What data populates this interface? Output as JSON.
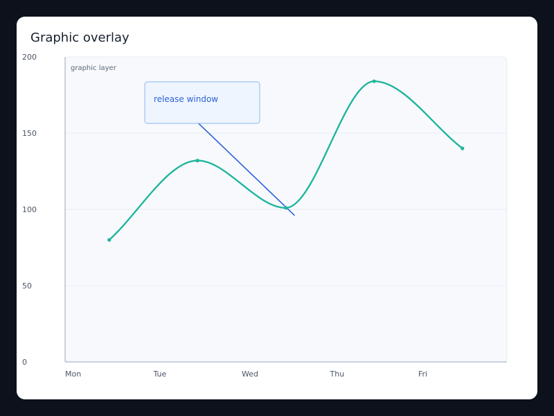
{
  "card": {
    "title": "Graphic overlay"
  },
  "colors": {
    "background": "#0c111c",
    "card": "#ffffff",
    "plot_background": "#f7f9fd",
    "gridline": "#e7ebf2",
    "axis": "#b9c3d4",
    "series": "#1fb59d",
    "annotation_line": "#2a5fd8",
    "callout_fill": "#eef5fe",
    "callout_border": "#8cb6ee",
    "callout_text": "#2c62d6"
  },
  "chart_data": {
    "type": "line",
    "smooth": true,
    "categories": [
      "Mon",
      "Tue",
      "Wed",
      "Thu",
      "Fri"
    ],
    "series": [
      {
        "values": [
          80,
          132,
          101,
          184,
          140
        ],
        "color": "#1fb59d"
      }
    ],
    "yticks": [
      0,
      50,
      100,
      150,
      200
    ],
    "ylim": [
      0,
      200
    ],
    "grid": true,
    "overlay": {
      "layer_label": "graphic layer",
      "callout_text": "release window",
      "line_from": {
        "x": 1.0,
        "y": 157
      },
      "line_to": {
        "x": 2.1,
        "y": 96
      }
    }
  }
}
